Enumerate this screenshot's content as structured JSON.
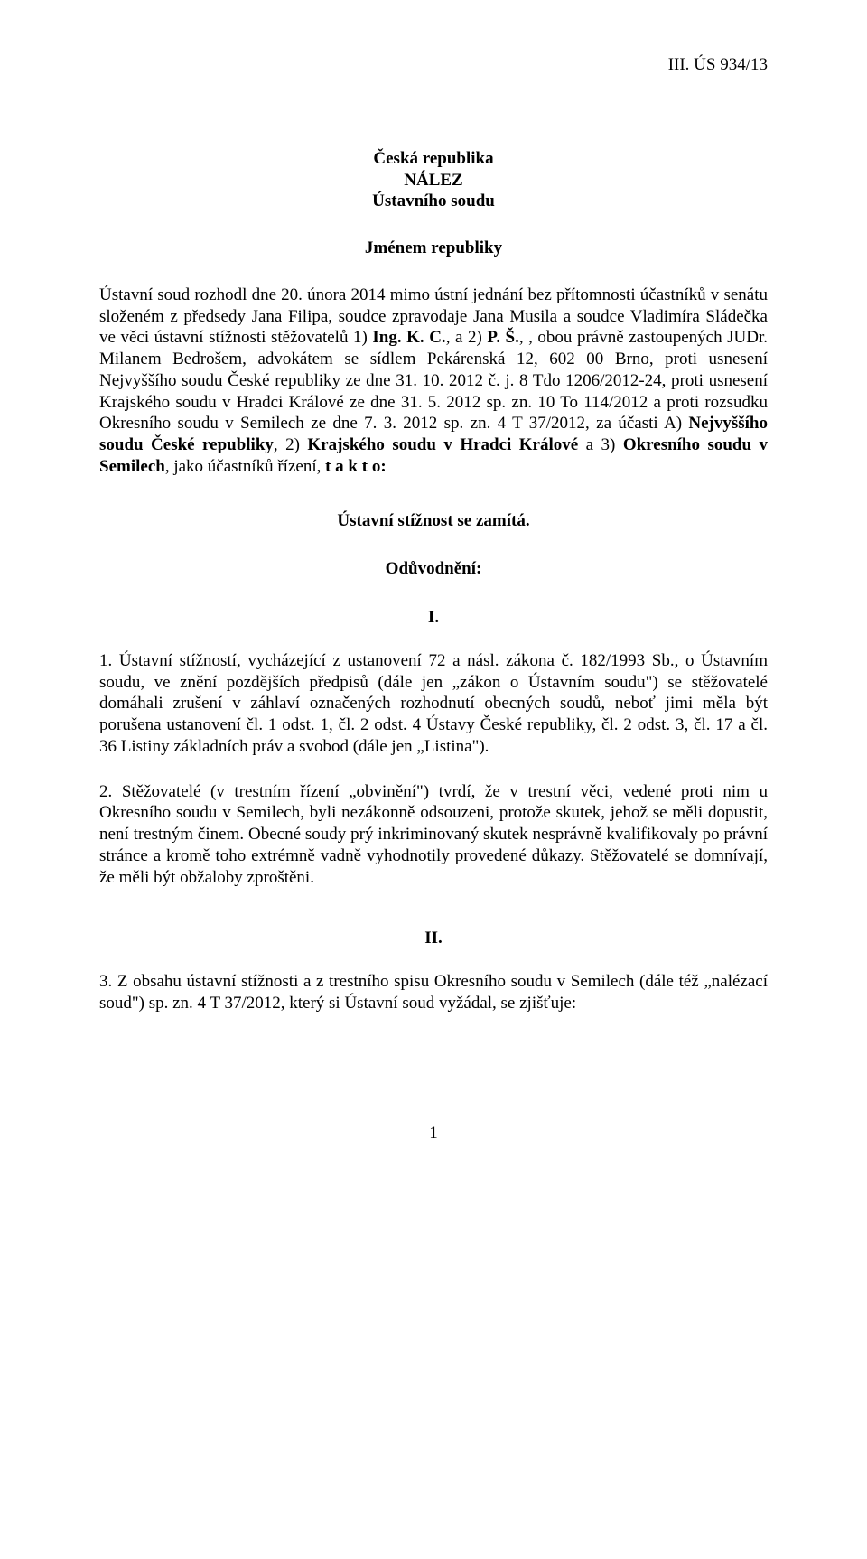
{
  "header": {
    "case_number": "III. ÚS 934/13"
  },
  "title": {
    "line1": "Česká republika",
    "line2": "NÁLEZ",
    "line3": "Ústavního soudu"
  },
  "subject": "Jménem republiky",
  "main": {
    "intro": "Ústavní soud rozhodl dne 20. února 2014 mimo ústní jednání bez přítomnosti účastníků v senátu složeném z předsedy Jana Filipa, soudce zpravodaje Jana Musila a soudce Vladimíra Sládečka ve věci ústavní stížnosti stěžovatelů 1) ",
    "party1": "Ing. K. C.",
    "sep1": ", a 2) ",
    "party2": "P. Š.",
    "body2": ", , obou právně zastoupených JUDr. Milanem Bedrošem, advokátem se sídlem Pekárenská 12, 602 00 Brno, proti usnesení Nejvyššího soudu České republiky ze dne 31. 10. 2012 č. j. 8 Tdo 1206/2012-24, proti usnesení Krajského soudu v Hradci Králové ze dne 31. 5. 2012 sp. zn. 10 To 114/2012 a proti rozsudku Okresního soudu v Semilech ze dne 7. 3. 2012 sp. zn. 4 T 37/2012, za účasti A) ",
    "bold_a": "Nejvyššího soudu České republiky",
    "sep_a": ", 2) ",
    "bold_b": "Krajského soudu v Hradci Králové",
    "sep_b": " a 3) ",
    "bold_c": "Okresního soudu v Semilech",
    "tail": ", jako účastníků řízení,  ",
    "takto": "t a k t o:"
  },
  "verdict": "Ústavní stížnost se zamítá.",
  "reasoning_header": "Odůvodnění:",
  "sections": {
    "I": {
      "num": "I.",
      "para1": "1.       Ústavní stížností, vycházející z ustanovení 72 a násl. zákona č. 182/1993 Sb., o Ústavním soudu, ve znění pozdějších předpisů (dále jen „zákon o Ústavním soudu\") se stěžovatelé domáhali zrušení v záhlaví označených rozhodnutí obecných soudů, neboť jimi měla být porušena ustanovení čl. 1 odst. 1, čl. 2 odst. 4 Ústavy České republiky, čl. 2 odst. 3, čl. 17 a čl. 36 Listiny základních práv a svobod (dále jen „Listina\").",
      "para2": "2.       Stěžovatelé (v trestním řízení „obvinění\") tvrdí, že v trestní věci, vedené proti nim u Okresního soudu v Semilech, byli nezákonně odsouzeni, protože skutek, jehož se měli dopustit, není trestným činem. Obecné soudy prý inkriminovaný skutek nesprávně kvalifikovaly po právní stránce a kromě toho extrémně vadně vyhodnotily provedené důkazy. Stěžovatelé se domnívají, že měli být obžaloby zproštěni."
    },
    "II": {
      "num": "II.",
      "para3": "3.       Z obsahu ústavní stížnosti a z trestního spisu Okresního soudu v Semilech (dále též „nalézací soud\") sp. zn. 4 T 37/2012, který si Ústavní soud vyžádal, se zjišťuje:"
    }
  },
  "page_number": "1"
}
